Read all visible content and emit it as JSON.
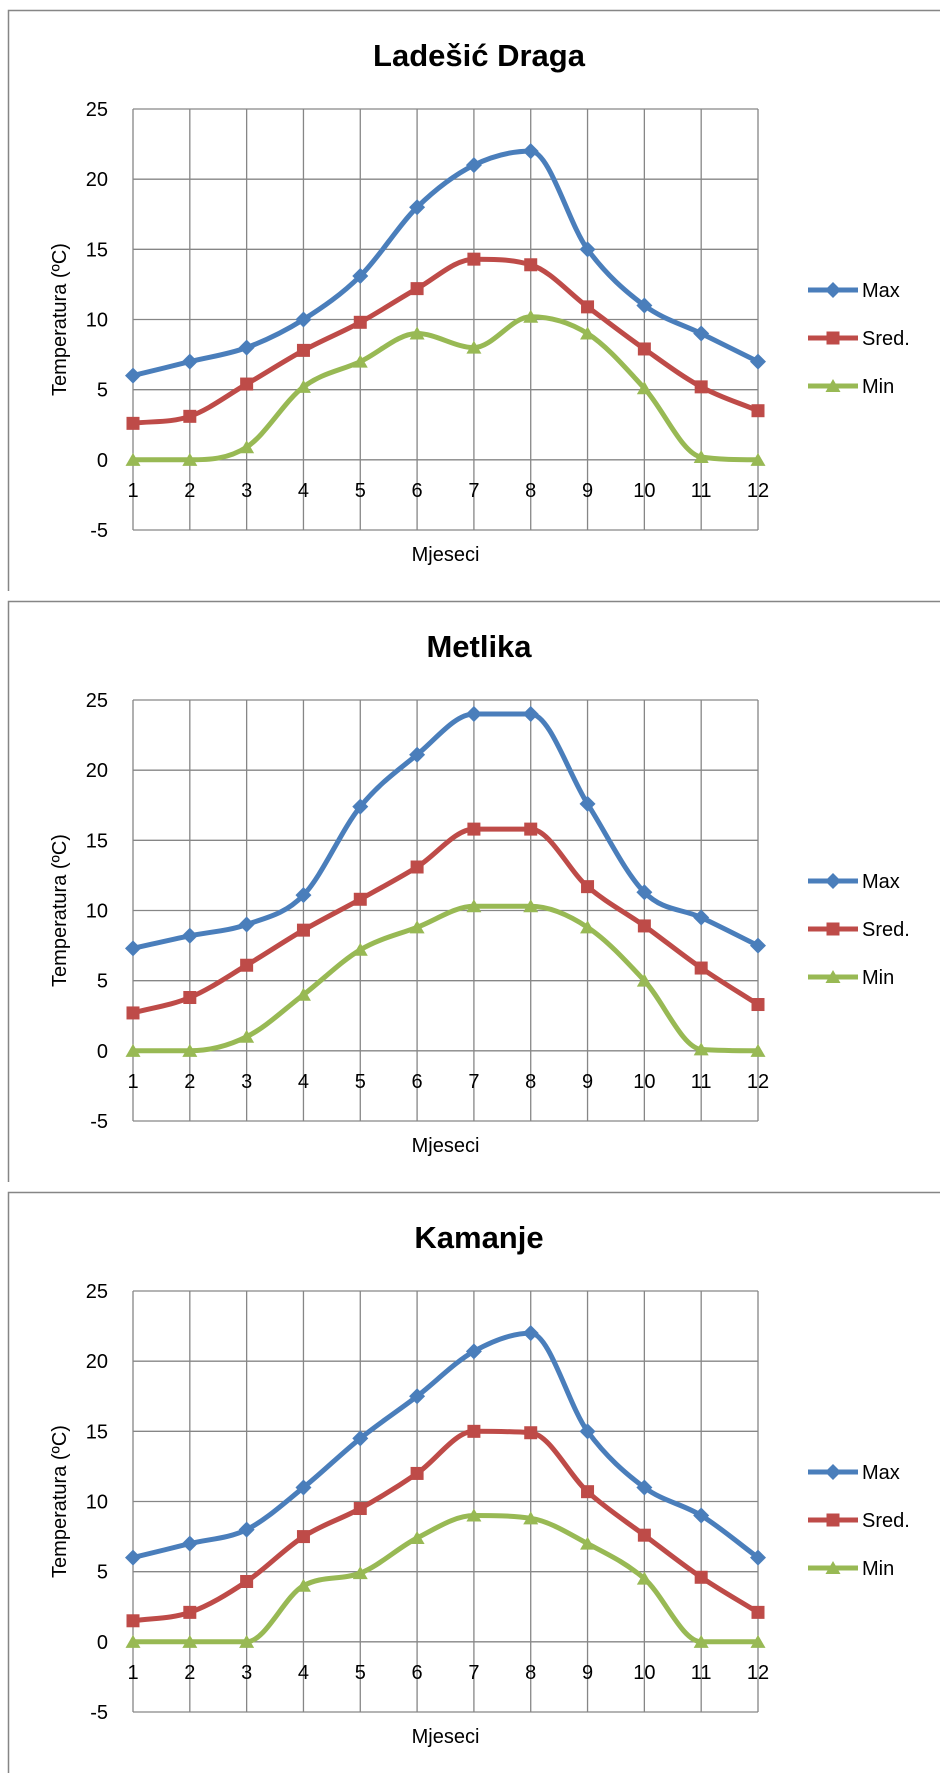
{
  "colors": {
    "max": "#4a7ebb",
    "sred": "#be4b48",
    "min": "#98b954",
    "grid": "#868686",
    "border": "#868686"
  },
  "chart_data": [
    {
      "type": "line",
      "title": "Ladešić Draga",
      "xlabel": "Mjeseci",
      "ylabel": "Temperatura (ºC)",
      "ylim": [
        -5,
        25
      ],
      "yticks": [
        "-5",
        "0",
        "5",
        "10",
        "15",
        "20",
        "25"
      ],
      "categories": [
        "1",
        "2",
        "3",
        "4",
        "5",
        "6",
        "7",
        "8",
        "9",
        "10",
        "11",
        "12"
      ],
      "grid": true,
      "legend_position": "right",
      "series": [
        {
          "name": "Max",
          "marker": "diamond",
          "values": [
            6,
            7,
            8,
            10,
            13.1,
            18,
            21,
            22,
            15,
            11,
            9,
            7
          ]
        },
        {
          "name": "Sred.",
          "marker": "square",
          "values": [
            2.6,
            3.1,
            5.4,
            7.8,
            9.8,
            12.2,
            14.3,
            13.9,
            10.9,
            7.9,
            5.2,
            3.5
          ]
        },
        {
          "name": "Min",
          "marker": "triangle",
          "values": [
            0,
            0,
            0.9,
            5.2,
            7,
            9,
            8,
            10.2,
            9,
            5.1,
            0.2,
            0
          ]
        }
      ]
    },
    {
      "type": "line",
      "title": "Metlika",
      "xlabel": "Mjeseci",
      "ylabel": "Temperatura (ºC)",
      "ylim": [
        -5,
        25
      ],
      "yticks": [
        "-5",
        "0",
        "5",
        "10",
        "15",
        "20",
        "25"
      ],
      "categories": [
        "1",
        "2",
        "3",
        "4",
        "5",
        "6",
        "7",
        "8",
        "9",
        "10",
        "11",
        "12"
      ],
      "grid": true,
      "legend_position": "right",
      "series": [
        {
          "name": "Max",
          "marker": "diamond",
          "values": [
            7.3,
            8.2,
            9,
            11.1,
            17.4,
            21.1,
            24,
            24,
            17.6,
            11.3,
            9.5,
            7.5
          ]
        },
        {
          "name": "Sred.",
          "marker": "square",
          "values": [
            2.7,
            3.8,
            6.1,
            8.6,
            10.8,
            13.1,
            15.8,
            15.8,
            11.7,
            8.9,
            5.9,
            3.3
          ]
        },
        {
          "name": "Min",
          "marker": "triangle",
          "values": [
            0,
            0,
            1,
            4,
            7.2,
            8.8,
            10.3,
            10.3,
            8.8,
            5,
            0.1,
            0
          ]
        }
      ]
    },
    {
      "type": "line",
      "title": "Kamanje",
      "xlabel": "Mjeseci",
      "ylabel": "Temperatura (ºC)",
      "ylim": [
        -5,
        25
      ],
      "yticks": [
        "-5",
        "0",
        "5",
        "10",
        "15",
        "20",
        "25"
      ],
      "categories": [
        "1",
        "2",
        "3",
        "4",
        "5",
        "6",
        "7",
        "8",
        "9",
        "10",
        "11",
        "12"
      ],
      "grid": true,
      "legend_position": "right",
      "series": [
        {
          "name": "Max",
          "marker": "diamond",
          "values": [
            6,
            7,
            8,
            11,
            14.5,
            17.5,
            20.7,
            22,
            15,
            11,
            9,
            6
          ]
        },
        {
          "name": "Sred.",
          "marker": "square",
          "values": [
            1.5,
            2.1,
            4.3,
            7.5,
            9.5,
            12,
            15,
            14.9,
            10.7,
            7.6,
            4.6,
            2.1
          ]
        },
        {
          "name": "Min",
          "marker": "triangle",
          "values": [
            0,
            0,
            0,
            4,
            4.9,
            7.4,
            9,
            8.8,
            7,
            4.5,
            0,
            0
          ]
        }
      ]
    }
  ]
}
